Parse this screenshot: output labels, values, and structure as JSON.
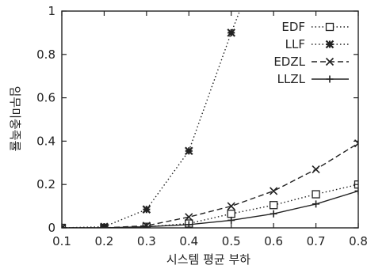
{
  "chart_data": {
    "type": "line",
    "title": "",
    "xlabel": "시스템 평균 부하",
    "ylabel": "임무미충족률",
    "xlim": [
      0.1,
      0.8
    ],
    "ylim": [
      0,
      1
    ],
    "x_ticks": [
      "0.1",
      "0.2",
      "0.3",
      "0.4",
      "0.5",
      "0.6",
      "0.7",
      "0.8"
    ],
    "y_ticks": [
      "0",
      "0.2",
      "0.4",
      "0.6",
      "0.8",
      "1"
    ],
    "grid": false,
    "legend_position": "top-right",
    "series": [
      {
        "name": "EDF",
        "marker": "square",
        "line": "dotted",
        "color": "#222222",
        "x": [
          0.1,
          0.2,
          0.3,
          0.4,
          0.5,
          0.6,
          0.7,
          0.8
        ],
        "y": [
          0.0,
          0.0,
          0.005,
          0.02,
          0.065,
          0.105,
          0.155,
          0.2
        ]
      },
      {
        "name": "LLF",
        "marker": "star",
        "line": "dotted",
        "color": "#222222",
        "x": [
          0.1,
          0.2,
          0.3,
          0.4,
          0.5,
          0.52
        ],
        "y": [
          0.0,
          0.005,
          0.085,
          0.355,
          0.9,
          1.0
        ]
      },
      {
        "name": "EDZL",
        "marker": "x",
        "line": "dashed",
        "color": "#222222",
        "x": [
          0.1,
          0.2,
          0.3,
          0.4,
          0.5,
          0.6,
          0.7,
          0.8
        ],
        "y": [
          0.0,
          0.0,
          0.01,
          0.05,
          0.1,
          0.17,
          0.27,
          0.39
        ]
      },
      {
        "name": "LLZL",
        "marker": "plus",
        "line": "solid",
        "color": "#222222",
        "x": [
          0.1,
          0.2,
          0.3,
          0.4,
          0.5,
          0.6,
          0.7,
          0.8
        ],
        "y": [
          0.0,
          0.0,
          0.005,
          0.015,
          0.035,
          0.065,
          0.11,
          0.17
        ]
      }
    ]
  }
}
